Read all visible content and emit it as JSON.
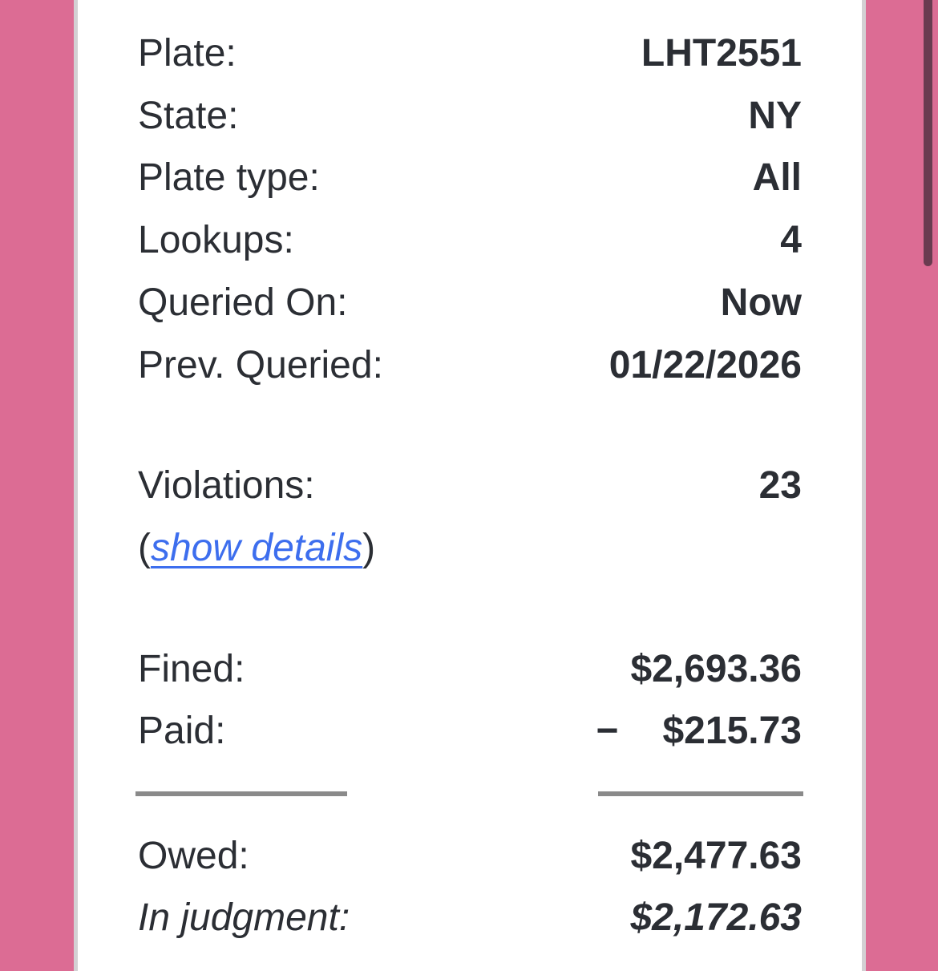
{
  "theme": {
    "background_pink": "#dc6c94",
    "card_border": "#d3d0d3",
    "text": "#2b2e34",
    "link_blue": "#3d6eee",
    "divider_gray": "#8a8a8a",
    "scrollbar": "#6a3b50"
  },
  "record": {
    "rows": [
      {
        "label": "Plate:",
        "value": "LHT2551"
      },
      {
        "label": "State:",
        "value": "NY"
      },
      {
        "label": "Plate type:",
        "value": "All"
      },
      {
        "label": "Lookups:",
        "value": "4"
      },
      {
        "label": "Queried On:",
        "value": "Now"
      },
      {
        "label": "Prev. Queried:",
        "value": "01/22/2026"
      }
    ],
    "violations": {
      "label": "Violations:",
      "value": "23",
      "details_prefix": "(",
      "details_link": "show details",
      "details_suffix": ")"
    },
    "fined": {
      "label": "Fined:",
      "value": "$2,693.36"
    },
    "paid": {
      "label": "Paid:",
      "minus_sign": "−",
      "value": "$215.73"
    },
    "owed": {
      "label": "Owed:",
      "value": "$2,477.63"
    },
    "in_judgment": {
      "label": "In judgment:",
      "value": "$2,172.63"
    }
  }
}
